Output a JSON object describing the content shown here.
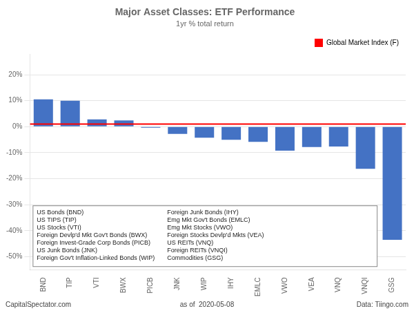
{
  "chart_data": {
    "type": "bar",
    "title": "Major Asset Classes: ETF Performance",
    "subtitle": "1yr % total return",
    "categories": [
      "BND",
      "TIP",
      "VTI",
      "BWX",
      "PICB",
      "JNK",
      "WIP",
      "IHY",
      "EMLC",
      "VWO",
      "VEA",
      "VNQ",
      "VNQI",
      "GSG"
    ],
    "values": [
      10.5,
      10.0,
      2.8,
      2.4,
      -0.4,
      -2.8,
      -4.2,
      -5.0,
      -5.8,
      -9.2,
      -7.8,
      -7.6,
      -16.2,
      -43.5
    ],
    "color": "#4472C4",
    "ylim": [
      -55,
      28
    ],
    "yticks": [
      {
        "value": -50,
        "label": "-50%"
      },
      {
        "value": -40,
        "label": "-40%"
      },
      {
        "value": -30,
        "label": "-30%"
      },
      {
        "value": -20,
        "label": "-20%"
      },
      {
        "value": -10,
        "label": "-10%"
      },
      {
        "value": 0,
        "label": "0%"
      },
      {
        "value": 10,
        "label": "10%"
      },
      {
        "value": 20,
        "label": "20%"
      }
    ],
    "grid": true,
    "legend": "upper right",
    "annotations": [
      {
        "type": "hline",
        "y": 1.0,
        "color": "#FF0000",
        "label": "Global Market Index (F)"
      },
      {
        "type": "text_box",
        "columns": [
          [
            "US Bonds (BND)",
            "US TIPS (TIP)",
            "US Stocks (VTI)",
            "Foreign Devlp'd Mkt Gov't Bonds (BWX)",
            "Foreign Invest-Grade Corp Bonds (PICB)",
            "US Junk Bonds (JNK)",
            "Foreign Gov't Inflation-Linked Bonds (WIP)"
          ],
          [
            "Foreign Junk Bonds (IHY)",
            "Emg Mkt Gov't Bonds (EMLC)",
            "Emg Mkt Stocks (VWO)",
            "Foreign Stocks Devlp'd Mkts (VEA)",
            "US REITs (VNQ)",
            "Foreign REITs (VNQI)",
            "Commodities (GSG)"
          ]
        ]
      },
      {
        "type": "footer",
        "texts": [
          "CapitalSpectator.com",
          "as of  2020-05-08",
          "Data: Tiingo.com"
        ]
      }
    ]
  }
}
